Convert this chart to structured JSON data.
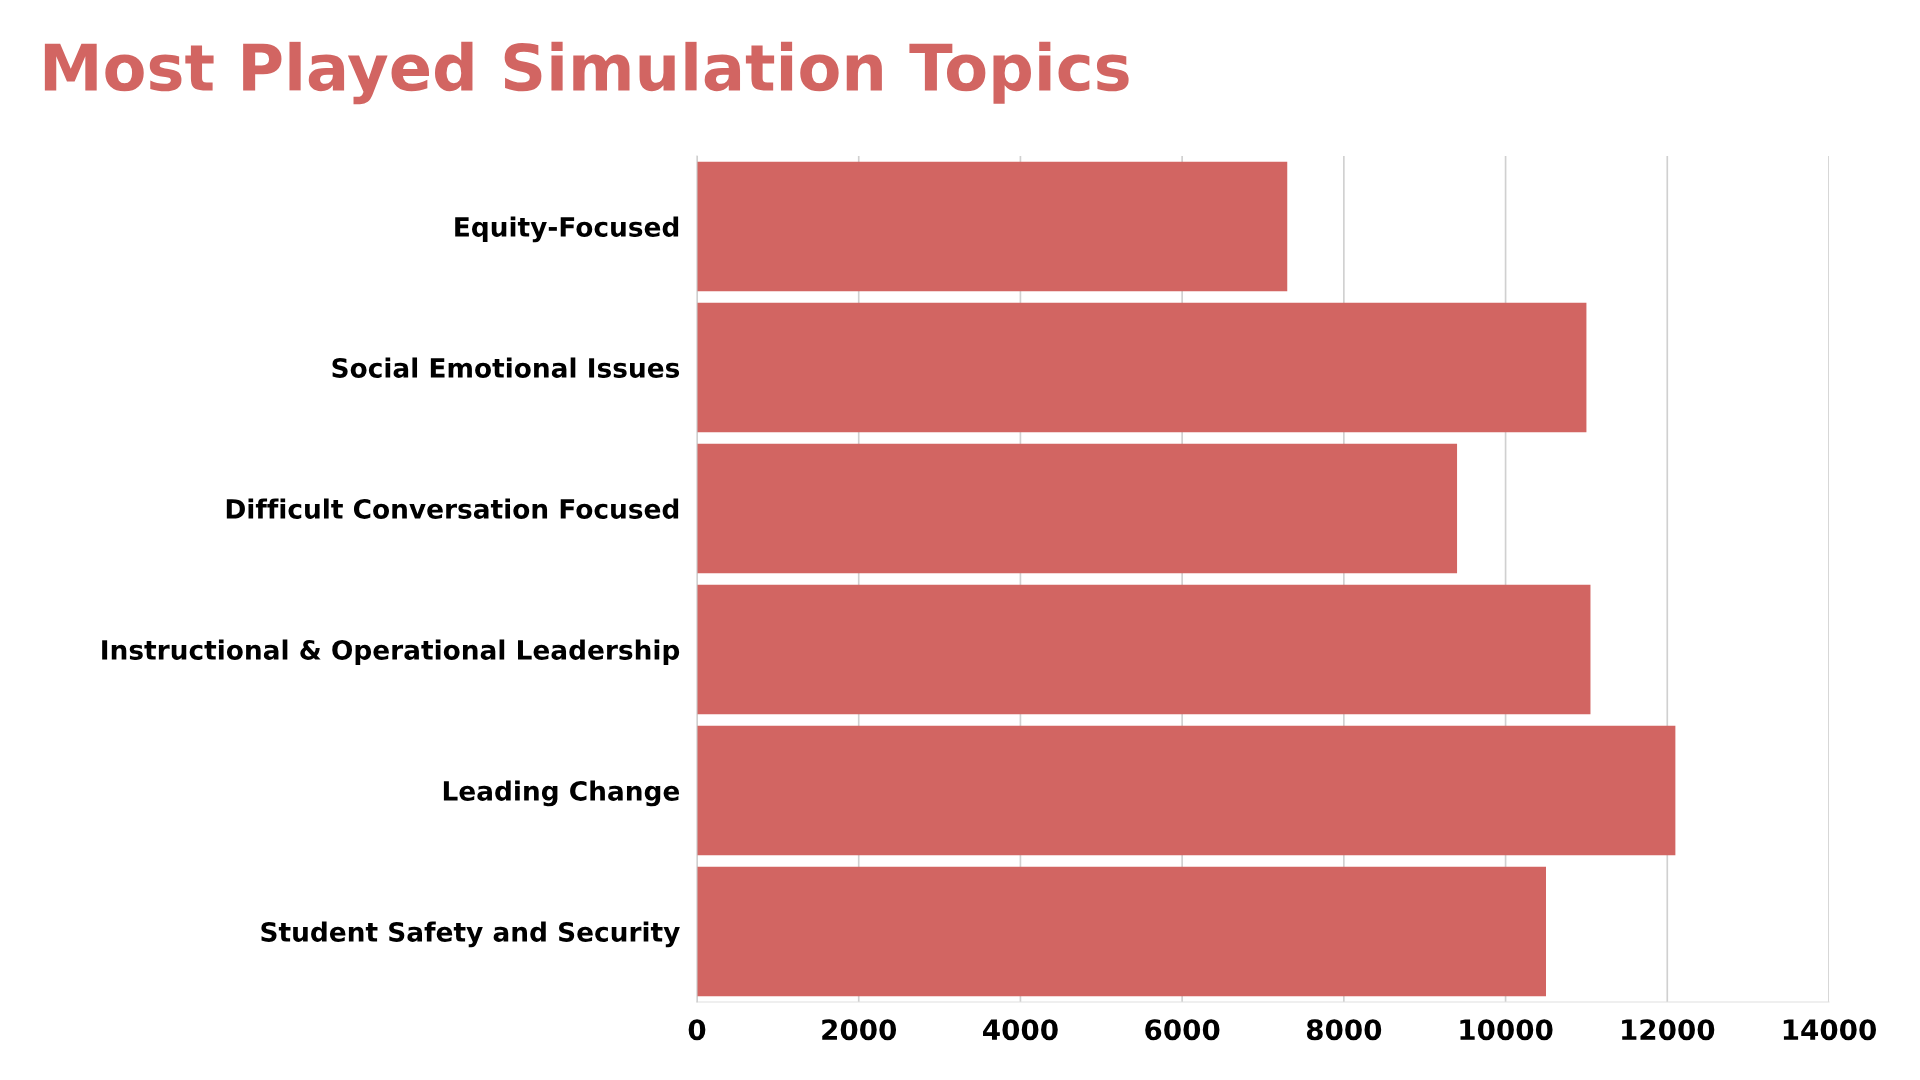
{
  "chart_data": {
    "type": "bar",
    "orientation": "horizontal",
    "title": "Most Played Simulation Topics",
    "categories": [
      "Equity-Focused",
      "Social Emotional Issues",
      "Difficult Conversation Focused",
      "Instructional & Operational Leadership",
      "Leading Change",
      "Student Safety and Security"
    ],
    "values": [
      7300,
      11000,
      9400,
      11050,
      12100,
      10500
    ],
    "color": "#d26562",
    "xlim": [
      0,
      14000
    ],
    "xticks": [
      0,
      2000,
      4000,
      6000,
      8000,
      10000,
      12000,
      14000
    ],
    "grid": "x",
    "legend": false
  }
}
